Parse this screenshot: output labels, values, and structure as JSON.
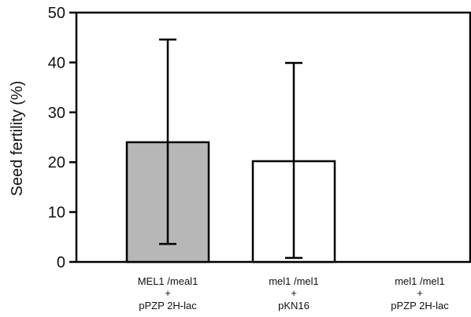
{
  "chart_data": {
    "type": "bar",
    "ylabel": "Seed fertility (%)",
    "xlabel": "",
    "ylim": [
      0,
      50
    ],
    "yticks": [
      0,
      10,
      20,
      30,
      40,
      50
    ],
    "grid": false,
    "categories": [
      {
        "line1": "MEL1  /meal1",
        "line2": "+",
        "line3": "pPZP 2H-lac"
      },
      {
        "line1": "mel1  /mel1",
        "line2": "+",
        "line3": "pKN16"
      },
      {
        "line1": "mel1  /mel1",
        "line2": "+",
        "line3": "pPZP 2H-lac"
      }
    ],
    "values": [
      24,
      20.2,
      0
    ],
    "error_low": [
      3.6,
      0.8,
      null
    ],
    "error_high": [
      44.6,
      39.9,
      null
    ],
    "bar_fills": [
      "#b7b7b7",
      "#ffffff",
      "#ffffff"
    ],
    "bar_stroke": "#000000"
  }
}
